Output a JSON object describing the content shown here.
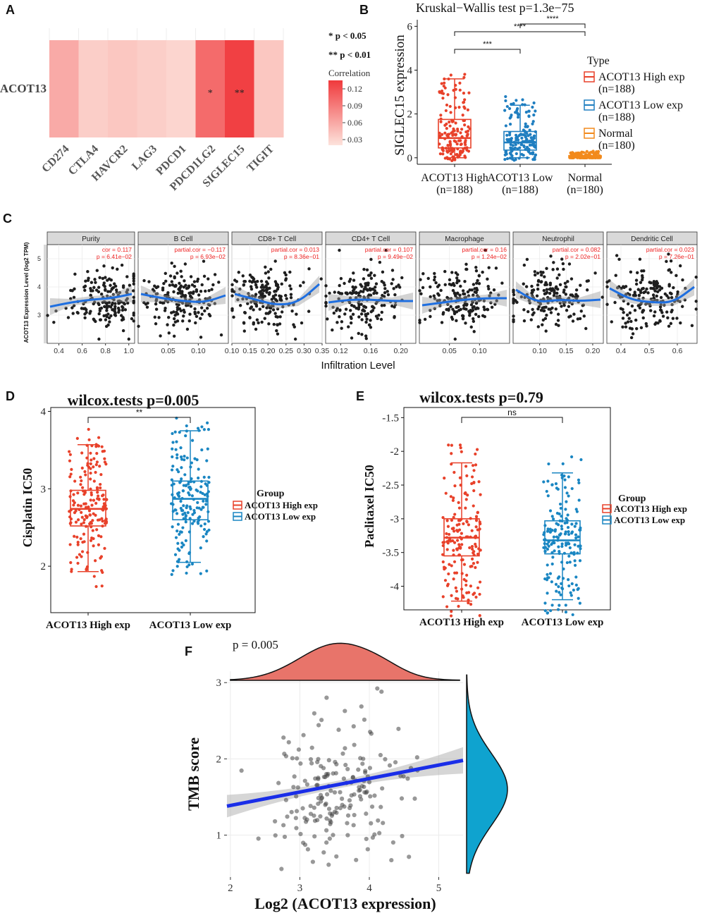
{
  "panels": {
    "A": "A",
    "B": "B",
    "C": "C",
    "D": "D",
    "E": "E",
    "F": "F"
  },
  "chart_data": [
    {
      "id": "A",
      "type": "heatmap",
      "title": "",
      "row_label": "ACOT13",
      "columns": [
        "CD274",
        "CTLA4",
        "HAVCR2",
        "LAG3",
        "PDCD1",
        "PDCD1LG2",
        "SIGLEC15",
        "TIGIT"
      ],
      "values": [
        0.06,
        0.035,
        0.04,
        0.035,
        0.03,
        0.105,
        0.135,
        0.04
      ],
      "cell_labels": [
        "",
        "",
        "",
        "",
        "",
        "*",
        "**",
        ""
      ],
      "significance_legend": [
        "* p < 0.05",
        "** p < 0.01"
      ],
      "colorbar": {
        "title": "Correlation",
        "ticks": [
          0.12,
          0.09,
          0.06,
          0.03
        ],
        "low": "#fde3dc",
        "high": "#f0393c"
      }
    },
    {
      "id": "B",
      "type": "box",
      "title": "Kruskal−Wallis test p=1.3e−75",
      "ylabel": "SIGLEC15 expression",
      "ylim": [
        -0.2,
        6.3
      ],
      "yticks": [
        0,
        2,
        4,
        6
      ],
      "groups": [
        {
          "label": "ACOT13 High",
          "n": "(n=188)",
          "color": "#e8412a",
          "q1": 0.45,
          "median": 0.9,
          "q3": 1.75,
          "lower": 0.0,
          "upper": 3.6
        },
        {
          "label": "ACOT13 Low",
          "n": "(n=188)",
          "color": "#1f7ec0",
          "q1": 0.35,
          "median": 0.7,
          "q3": 1.2,
          "lower": 0.0,
          "upper": 2.4
        },
        {
          "label": "Normal",
          "n": "(n=180)",
          "color": "#f28a1c",
          "q1": 0.0,
          "median": 0.05,
          "q3": 0.1,
          "lower": 0.0,
          "upper": 0.25
        }
      ],
      "comparisons": [
        {
          "from": 0,
          "to": 1,
          "label": "***"
        },
        {
          "from": 0,
          "to": 2,
          "label": "****"
        },
        {
          "from": 1,
          "to": 2,
          "label": "****"
        }
      ],
      "legend": {
        "title": "Type",
        "items": [
          "ACOT13 High exp",
          "(n=188)",
          "ACOT13 Low exp",
          "(n=188)",
          "Normal",
          "(n=180)"
        ]
      }
    },
    {
      "id": "C",
      "type": "scatter",
      "ylabel": "ACOT13 Expression Level (log2 TPM)",
      "xlabel": "Infiltration Level",
      "yticks": [
        3,
        4,
        5
      ],
      "ylim": [
        2.0,
        5.5
      ],
      "facets": [
        {
          "name": "Purity",
          "stat1": "cor = 0.117",
          "stat2": "p = 6.41e−02",
          "xlim": [
            0.3,
            1.05
          ],
          "xticks": [
            0.4,
            0.6,
            0.8,
            1.0
          ],
          "xfmt": 1,
          "xc": 0.8,
          "xs": 0.15,
          "trend": [
            3.3,
            3.45,
            3.55,
            3.6,
            3.75
          ]
        },
        {
          "name": "B Cell",
          "stat1": "partial.cor = −0.117",
          "stat2": "p = 6.93e−02",
          "xlim": [
            0.0,
            0.15
          ],
          "xticks": [
            0.05,
            0.1
          ],
          "xfmt": 2,
          "xc": 0.07,
          "xs": 0.03,
          "trend": [
            3.75,
            3.6,
            3.5,
            3.45,
            3.7
          ]
        },
        {
          "name": "CD8+ T Cell",
          "stat1": "partial.cor = 0.013",
          "stat2": "p = 8.36e−01",
          "xlim": [
            0.1,
            0.35
          ],
          "xticks": [
            0.1,
            0.15,
            0.2,
            0.25,
            0.3,
            0.35
          ],
          "xfmt": 2,
          "xc": 0.19,
          "xs": 0.05,
          "trend": [
            3.75,
            3.55,
            3.35,
            3.45,
            4.1
          ]
        },
        {
          "name": "CD4+ T Cell",
          "stat1": "partial.cor = 0.107",
          "stat2": "p = 9.49e−02",
          "xlim": [
            0.1,
            0.22
          ],
          "xticks": [
            0.12,
            0.16,
            0.2
          ],
          "xfmt": 2,
          "xc": 0.15,
          "xs": 0.025,
          "trend": [
            3.45,
            3.55,
            3.55,
            3.5,
            3.5
          ]
        },
        {
          "name": "Macrophage",
          "stat1": "partial.cor = 0.16",
          "stat2": "p = 1.24e−02",
          "xlim": [
            0.0,
            0.15
          ],
          "xticks": [
            0.05,
            0.1
          ],
          "xfmt": 2,
          "xc": 0.07,
          "xs": 0.03,
          "trend": [
            3.35,
            3.45,
            3.55,
            3.6,
            3.6
          ]
        },
        {
          "name": "Neutrophil",
          "stat1": "partial.cor = 0.082",
          "stat2": "p = 2.02e−01",
          "xlim": [
            0.05,
            0.22
          ],
          "xticks": [
            0.1,
            0.15,
            0.2
          ],
          "xfmt": 2,
          "xc": 0.12,
          "xs": 0.035,
          "trend": [
            3.9,
            3.45,
            3.55,
            3.5,
            3.55
          ]
        },
        {
          "name": "Dendritic Cell",
          "stat1": "partial.cor = 0.023",
          "stat2": "p = 7.26e−01",
          "xlim": [
            0.35,
            0.67
          ],
          "xticks": [
            0.4,
            0.5,
            0.6
          ],
          "xfmt": 1,
          "xc": 0.5,
          "xs": 0.07,
          "trend": [
            3.95,
            3.55,
            3.45,
            3.45,
            4.0
          ]
        }
      ]
    },
    {
      "id": "D",
      "type": "box",
      "title": "wilcox.tests p=0.005",
      "ylabel": "Cisplatin IC50",
      "ylim": [
        1.4,
        4.05
      ],
      "yticks": [
        2,
        3,
        4
      ],
      "groups": [
        {
          "label": "ACOT13 High exp",
          "color": "#e8412a",
          "q1": 2.52,
          "median": 2.74,
          "q3": 2.98,
          "lower": 1.93,
          "upper": 3.57
        },
        {
          "label": "ACOT13 Low exp",
          "color": "#1a86c2",
          "q1": 2.6,
          "median": 2.87,
          "q3": 3.1,
          "lower": 2.05,
          "upper": 3.75
        }
      ],
      "comparisons": [
        {
          "from": 0,
          "to": 1,
          "label": "**"
        }
      ],
      "legend": {
        "title": "Group",
        "items": [
          "ACOT13 High exp",
          "ACOT13 Low exp"
        ]
      }
    },
    {
      "id": "E",
      "type": "box",
      "title": "wilcox.tests p=0.79",
      "ylabel": "Paclitaxel IC50",
      "ylim": [
        -4.35,
        -1.35
      ],
      "yticks": [
        -1.5,
        -2.0,
        -2.5,
        -3.0,
        -3.5,
        -4.0
      ],
      "groups": [
        {
          "label": "ACOT13 High exp",
          "color": "#e8412a",
          "q1": -3.55,
          "median": -3.28,
          "q3": -3.0,
          "lower": -4.22,
          "upper": -2.17
        },
        {
          "label": "ACOT13 Low exp",
          "color": "#1a86c2",
          "q1": -3.52,
          "median": -3.32,
          "q3": -3.03,
          "lower": -4.2,
          "upper": -2.32
        }
      ],
      "comparisons": [
        {
          "from": 0,
          "to": 1,
          "label": "ns"
        }
      ],
      "legend": {
        "title": "Group",
        "items": [
          "ACOT13 High exp",
          "ACOT13 Low exp"
        ]
      }
    },
    {
      "id": "F",
      "type": "scatter",
      "annotation": "p = 0.005",
      "xlabel": "Log2 (ACOT13 expression)",
      "ylabel": "TMB score",
      "xlim": [
        1.95,
        5.35
      ],
      "ylim": [
        0.45,
        3.15
      ],
      "xticks": [
        2,
        3,
        4,
        5
      ],
      "yticks": [
        1,
        2,
        3
      ],
      "fit": {
        "x": [
          1.95,
          5.35
        ],
        "y": [
          1.38,
          1.98
        ]
      },
      "x_mean": 3.55,
      "x_sd": 0.5,
      "y_mean": 1.6,
      "y_sd": 0.45,
      "n": 190,
      "colors": {
        "top_density": "#e8746a",
        "right_density": "#0fa3cf",
        "fit": "#1a2ee8"
      }
    }
  ]
}
